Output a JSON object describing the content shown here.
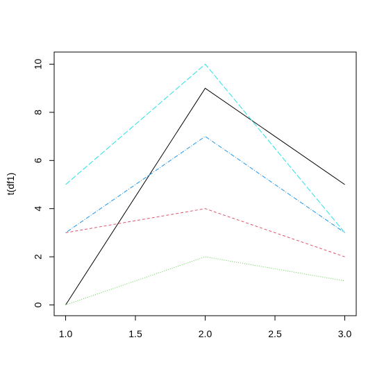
{
  "chart_data": {
    "type": "line",
    "title": "",
    "xlabel": "",
    "ylabel": "t(df1)",
    "xlim": [
      1.0,
      3.0
    ],
    "ylim": [
      0,
      10
    ],
    "x_ticks": [
      "1.0",
      "1.5",
      "2.0",
      "2.5",
      "3.0"
    ],
    "y_ticks": [
      "0",
      "2",
      "4",
      "6",
      "8",
      "10"
    ],
    "grid": false,
    "legend": "none",
    "x": [
      1,
      2,
      3
    ],
    "series": [
      {
        "values": [
          0,
          9,
          5
        ],
        "color": "#000000",
        "dash": ""
      },
      {
        "values": [
          3,
          4,
          2
        ],
        "color": "#DF536B",
        "dash": "4 3"
      },
      {
        "values": [
          0,
          2,
          1
        ],
        "color": "#61D04F",
        "dash": "1 2"
      },
      {
        "values": [
          3,
          7,
          3
        ],
        "color": "#2297E6",
        "dash": "1 2 6 2"
      },
      {
        "values": [
          5,
          10,
          3
        ],
        "color": "#28E2E5",
        "dash": "8 3"
      }
    ]
  }
}
